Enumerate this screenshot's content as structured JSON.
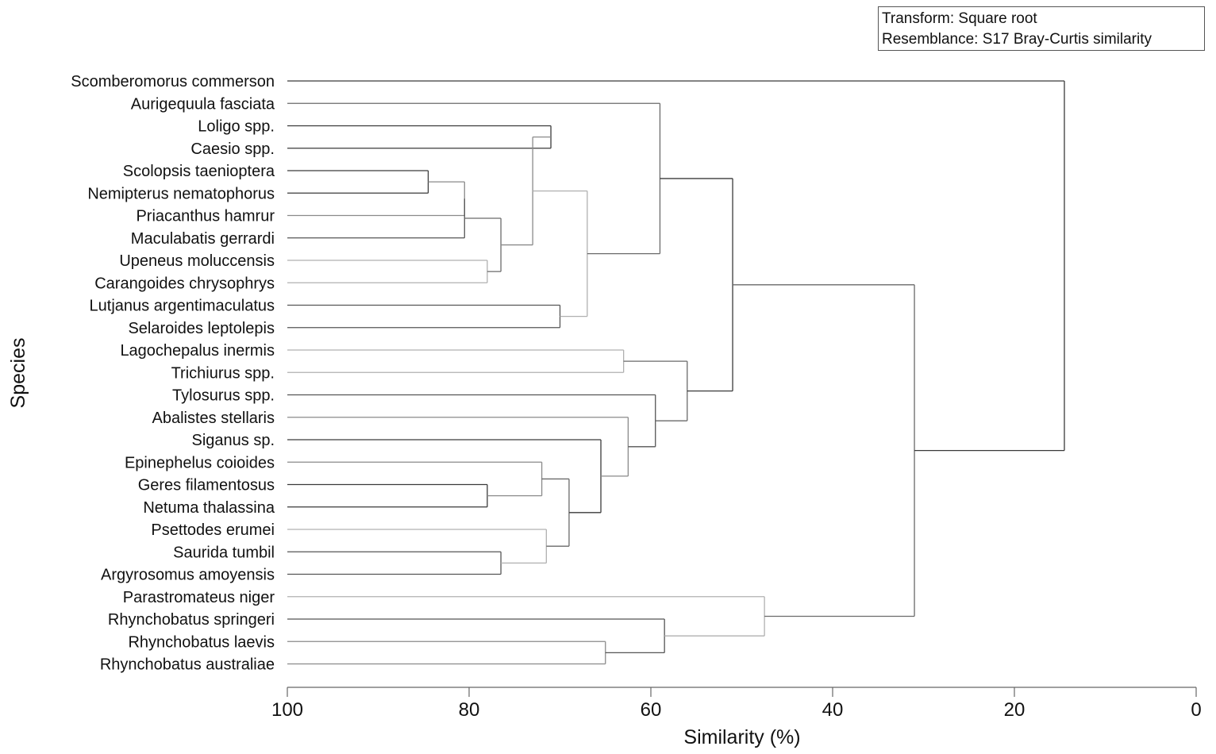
{
  "legend": {
    "transform": "Transform: Square root",
    "resemblance": "Resemblance: S17 Bray-Curtis similarity"
  },
  "chart_data": {
    "type": "dendrogram",
    "title": "",
    "xlabel": "Similarity (%)",
    "ylabel": "Species",
    "xlim": [
      100,
      0
    ],
    "ticks": [
      100,
      80,
      60,
      40,
      20,
      0
    ],
    "leaves": [
      "Scomberomorus commerson",
      "Aurigequula fasciata",
      "Loligo spp.",
      "Caesio spp.",
      "Scolopsis taenioptera",
      "Nemipterus nematophorus",
      "Priacanthus hamrur",
      "Maculabatis gerrardi",
      "Upeneus moluccensis",
      "Carangoides chrysophrys",
      "Lutjanus argentimaculatus",
      "Selaroides leptolepis",
      "Lagochepalus inermis",
      "Trichiurus spp.",
      "Tylosurus spp.",
      "Abalistes stellaris",
      "Siganus sp.",
      "Epinephelus coioides",
      "Geres filamentosus",
      "Netuma thalassina",
      "Psettodes erumei",
      "Saurida tumbil",
      "Argyrosomus amoyensis",
      "Parastromateus niger",
      "Rhynchobatus springeri",
      "Rhynchobatus laevis",
      "Rhynchobatus australiae"
    ],
    "merges": [
      {
        "id": "c1",
        "a": 4,
        "b": 5,
        "sim": 84.5
      },
      {
        "id": "c2",
        "a": "c1",
        "b": 6,
        "sim": 80.5
      },
      {
        "id": "c3",
        "a": "c2",
        "b": 7,
        "sim": 80.5
      },
      {
        "id": "c4",
        "a": 8,
        "b": 9,
        "sim": 78.0
      },
      {
        "id": "c5",
        "a": "c3",
        "b": "c4",
        "sim": 76.5
      },
      {
        "id": "c6",
        "a": 2,
        "b": 3,
        "sim": 71.0
      },
      {
        "id": "c7",
        "a": "c6",
        "b": "c5",
        "sim": 73.0
      },
      {
        "id": "c8",
        "a": 10,
        "b": 11,
        "sim": 70.0
      },
      {
        "id": "c9",
        "a": "c7",
        "b": "c8",
        "sim": 67.0
      },
      {
        "id": "c10",
        "a": 1,
        "b": "c9",
        "sim": 59.0
      },
      {
        "id": "c11",
        "a": 18,
        "b": 19,
        "sim": 78.0
      },
      {
        "id": "c12",
        "a": 17,
        "b": "c11",
        "sim": 72.0
      },
      {
        "id": "c13",
        "a": 21,
        "b": 22,
        "sim": 76.5
      },
      {
        "id": "c14",
        "a": 20,
        "b": "c13",
        "sim": 71.5
      },
      {
        "id": "c15",
        "a": "c12",
        "b": "c14",
        "sim": 69.0
      },
      {
        "id": "c16",
        "a": 16,
        "b": "c15",
        "sim": 65.5
      },
      {
        "id": "c17",
        "a": 15,
        "b": "c16",
        "sim": 62.5
      },
      {
        "id": "c18",
        "a": 14,
        "b": "c17",
        "sim": 59.5
      },
      {
        "id": "c19",
        "a": 12,
        "b": 13,
        "sim": 63.0
      },
      {
        "id": "c20",
        "a": "c19",
        "b": "c18",
        "sim": 56.0
      },
      {
        "id": "c21",
        "a": "c10",
        "b": "c20",
        "sim": 51.0
      },
      {
        "id": "c22",
        "a": 25,
        "b": 26,
        "sim": 65.0
      },
      {
        "id": "c23",
        "a": 24,
        "b": "c22",
        "sim": 58.5
      },
      {
        "id": "c24",
        "a": 23,
        "b": "c23",
        "sim": 47.5
      },
      {
        "id": "c25",
        "a": "c21",
        "b": "c24",
        "sim": 31.0
      },
      {
        "id": "c26",
        "a": 0,
        "b": "c25",
        "sim": 14.5
      }
    ]
  }
}
